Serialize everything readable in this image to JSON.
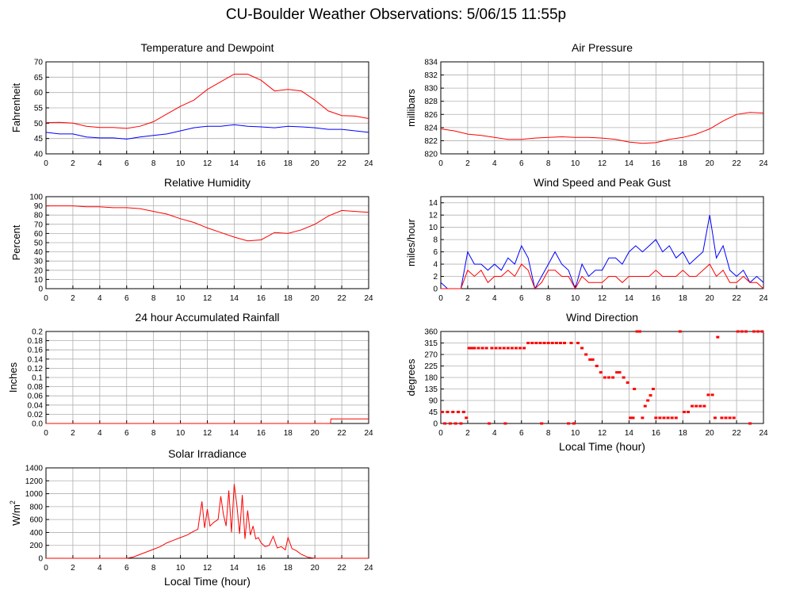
{
  "page": {
    "title": "CU-Boulder Weather Observations: 5/06/15 11:55p"
  },
  "colors": {
    "primary_series": "#ff0000",
    "secondary_series": "#0000ff",
    "grid": "#b0b0b0"
  },
  "chart_data": [
    {
      "id": "temperature",
      "type": "line",
      "title": "Temperature and Dewpoint",
      "ylabel": "Fahrenheit",
      "xlabel": "",
      "xlim": [
        0,
        24
      ],
      "ylim": [
        40,
        70
      ],
      "xticks": [
        "0",
        "2",
        "4",
        "6",
        "8",
        "10",
        "12",
        "14",
        "16",
        "18",
        "20",
        "22",
        "24"
      ],
      "yticks": [
        "40",
        "45",
        "50",
        "55",
        "60",
        "65",
        "70"
      ],
      "grid": true,
      "x": [
        0,
        1,
        2,
        3,
        4,
        5,
        6,
        7,
        8,
        9,
        10,
        11,
        12,
        13,
        14,
        15,
        16,
        17,
        18,
        19,
        20,
        21,
        22,
        23,
        24
      ],
      "series": [
        {
          "color": "#ff0000",
          "values": [
            50.2,
            50.3,
            50,
            49,
            48.6,
            48.6,
            48.3,
            49,
            50.5,
            53,
            55.5,
            57.5,
            61,
            63.5,
            66,
            66,
            64,
            60.5,
            61,
            60.5,
            57.5,
            54,
            52.5,
            52.3,
            51.5
          ]
        },
        {
          "color": "#0000ff",
          "values": [
            47,
            46.5,
            46.5,
            45.5,
            45.2,
            45.2,
            44.8,
            45.5,
            46,
            46.5,
            47.5,
            48.5,
            49,
            49,
            49.5,
            49,
            48.8,
            48.5,
            49,
            48.8,
            48.5,
            48,
            48,
            47.5,
            47
          ]
        }
      ]
    },
    {
      "id": "pressure",
      "type": "line",
      "title": "Air Pressure",
      "ylabel": "millibars",
      "xlabel": "",
      "xlim": [
        0,
        24
      ],
      "ylim": [
        820,
        834
      ],
      "xticks": [
        "0",
        "2",
        "4",
        "6",
        "8",
        "10",
        "12",
        "14",
        "16",
        "18",
        "20",
        "22",
        "24"
      ],
      "yticks": [
        "820",
        "822",
        "824",
        "826",
        "828",
        "830",
        "832",
        "834"
      ],
      "grid": true,
      "x": [
        0,
        1,
        2,
        3,
        4,
        5,
        6,
        7,
        8,
        9,
        10,
        11,
        12,
        13,
        14,
        15,
        16,
        17,
        18,
        19,
        20,
        21,
        22,
        23,
        24
      ],
      "series": [
        {
          "color": "#ff0000",
          "values": [
            823.8,
            823.5,
            823,
            822.8,
            822.5,
            822.2,
            822.2,
            822.4,
            822.5,
            822.6,
            822.5,
            822.5,
            822.4,
            822.2,
            821.8,
            821.6,
            821.7,
            822.2,
            822.5,
            823,
            823.8,
            825,
            826,
            826.3,
            826.2
          ]
        }
      ]
    },
    {
      "id": "humidity",
      "type": "line",
      "title": "Relative Humidity",
      "ylabel": "Percent",
      "xlabel": "",
      "xlim": [
        0,
        24
      ],
      "ylim": [
        0,
        100
      ],
      "xticks": [
        "0",
        "2",
        "4",
        "6",
        "8",
        "10",
        "12",
        "14",
        "16",
        "18",
        "20",
        "22",
        "24"
      ],
      "yticks": [
        "0",
        "10",
        "20",
        "30",
        "40",
        "50",
        "60",
        "70",
        "80",
        "90",
        "100"
      ],
      "grid": true,
      "x": [
        0,
        1,
        2,
        3,
        4,
        5,
        6,
        7,
        8,
        9,
        10,
        11,
        12,
        13,
        14,
        15,
        16,
        17,
        18,
        19,
        20,
        21,
        22,
        23,
        24
      ],
      "series": [
        {
          "color": "#ff0000",
          "values": [
            90,
            90,
            90,
            89,
            89,
            88,
            88,
            87,
            84,
            81,
            76,
            72,
            66,
            61,
            56,
            52,
            53,
            61,
            60,
            64,
            70,
            79,
            85,
            84,
            83
          ]
        }
      ]
    },
    {
      "id": "wind-speed",
      "type": "line",
      "title": "Wind Speed and Peak Gust",
      "ylabel": "miles/hour",
      "xlabel": "",
      "xlim": [
        0,
        24
      ],
      "ylim": [
        0,
        15
      ],
      "xticks": [
        "0",
        "2",
        "4",
        "6",
        "8",
        "10",
        "12",
        "14",
        "16",
        "18",
        "20",
        "22",
        "24"
      ],
      "yticks": [
        "0",
        "2",
        "4",
        "6",
        "8",
        "10",
        "12",
        "14"
      ],
      "grid": true,
      "x": [
        0,
        0.5,
        1,
        1.5,
        2,
        2.5,
        3,
        3.5,
        4,
        4.5,
        5,
        5.5,
        6,
        6.5,
        7,
        7.5,
        8,
        8.5,
        9,
        9.5,
        10,
        10.5,
        11,
        11.5,
        12,
        12.5,
        13,
        13.5,
        14,
        14.5,
        15,
        15.5,
        16,
        16.5,
        17,
        17.5,
        18,
        18.5,
        19,
        19.5,
        20,
        20.5,
        21,
        21.5,
        22,
        22.5,
        23,
        23.5,
        24
      ],
      "series": [
        {
          "color": "#0000ff",
          "values": [
            1,
            0,
            0,
            0,
            6,
            4,
            4,
            3,
            4,
            3,
            5,
            4,
            7,
            5,
            0,
            2,
            4,
            6,
            4,
            3,
            0,
            4,
            2,
            3,
            3,
            5,
            5,
            4,
            6,
            7,
            6,
            7,
            8,
            6,
            7,
            5,
            6,
            4,
            5,
            6,
            12,
            5,
            7,
            3,
            2,
            3,
            1,
            2,
            1
          ]
        },
        {
          "color": "#ff0000",
          "values": [
            0,
            0,
            0,
            0,
            3,
            2,
            3,
            1,
            2,
            2,
            3,
            2,
            4,
            3,
            0,
            1,
            3,
            3,
            2,
            2,
            0,
            2,
            1,
            1,
            1,
            2,
            2,
            1,
            2,
            2,
            2,
            2,
            3,
            2,
            2,
            2,
            3,
            2,
            2,
            3,
            4,
            2,
            3,
            1,
            1,
            2,
            1,
            1,
            0
          ]
        }
      ]
    },
    {
      "id": "rainfall",
      "type": "line",
      "title": "24 hour Accumulated Rainfall",
      "ylabel": "Inches",
      "xlabel": "",
      "xlim": [
        0,
        24
      ],
      "ylim": [
        0,
        0.2
      ],
      "xticks": [
        "0",
        "2",
        "4",
        "6",
        "8",
        "10",
        "12",
        "14",
        "16",
        "18",
        "20",
        "22",
        "24"
      ],
      "yticks": [
        "0.0",
        "0.02",
        "0.04",
        "0.06",
        "0.08",
        "0.1",
        "0.12",
        "0.14",
        "0.16",
        "0.18",
        "0.2"
      ],
      "grid": true,
      "x": [
        0,
        21.15,
        21.2,
        24
      ],
      "series": [
        {
          "color": "#ff0000",
          "values": [
            0,
            0,
            0.01,
            0.01
          ]
        }
      ]
    },
    {
      "id": "wind-direction",
      "type": "scatter",
      "title": "Wind Direction",
      "ylabel": "degrees",
      "xlabel": "Local Time (hour)",
      "xlim": [
        0,
        24
      ],
      "ylim": [
        0,
        360
      ],
      "xticks": [
        "0",
        "2",
        "4",
        "6",
        "8",
        "10",
        "12",
        "14",
        "16",
        "18",
        "20",
        "22",
        "24"
      ],
      "yticks": [
        "0",
        "45",
        "90",
        "135",
        "180",
        "225",
        "270",
        "315",
        "360"
      ],
      "grid": true,
      "x": [
        0.1,
        0.3,
        0.5,
        0.7,
        0.9,
        1.1,
        1.3,
        1.5,
        1.7,
        1.9,
        2.1,
        2.3,
        2.5,
        2.8,
        3.1,
        3.4,
        3.6,
        3.8,
        4.1,
        4.4,
        4.7,
        4.8,
        5.0,
        5.3,
        5.6,
        5.9,
        6.2,
        6.5,
        6.8,
        7.1,
        7.4,
        7.5,
        7.7,
        8.0,
        8.3,
        8.6,
        8.9,
        9.2,
        9.5,
        9.7,
        9.9,
        10.2,
        10.5,
        10.8,
        11.1,
        11.3,
        11.6,
        11.9,
        12.2,
        12.5,
        12.8,
        13.1,
        13.3,
        13.6,
        13.9,
        14.1,
        14.3,
        14.4,
        14.6,
        14.8,
        15.0,
        15.2,
        15.4,
        15.6,
        15.8,
        16.0,
        16.3,
        16.6,
        16.9,
        17.2,
        17.5,
        17.8,
        18.1,
        18.4,
        18.7,
        19.0,
        19.3,
        19.6,
        19.9,
        20.2,
        20.4,
        20.6,
        20.9,
        21.2,
        21.5,
        21.8,
        22.1,
        22.4,
        22.7,
        23.0,
        23.3,
        23.6,
        23.9
      ],
      "series": [
        {
          "color": "#ff0000",
          "values": [
            45,
            0,
            45,
            0,
            45,
            0,
            45,
            0,
            45,
            22,
            295,
            295,
            295,
            295,
            295,
            295,
            0,
            295,
            295,
            295,
            295,
            0,
            295,
            295,
            295,
            295,
            295,
            315,
            315,
            315,
            315,
            0,
            315,
            315,
            315,
            315,
            315,
            315,
            0,
            315,
            0,
            315,
            295,
            270,
            250,
            250,
            225,
            200,
            180,
            180,
            180,
            200,
            200,
            180,
            160,
            22,
            22,
            135,
            360,
            360,
            22,
            68,
            90,
            110,
            135,
            22,
            22,
            22,
            22,
            22,
            22,
            360,
            45,
            45,
            68,
            68,
            68,
            68,
            112,
            112,
            22,
            338,
            22,
            22,
            22,
            22,
            360,
            360,
            360,
            0,
            360,
            360,
            360
          ]
        }
      ]
    },
    {
      "id": "solar",
      "type": "line",
      "title": "Solar Irradiance",
      "ylabel": "W/m",
      "ylabel_superscript": "2",
      "xlabel": "Local Time (hour)",
      "xlim": [
        0,
        24
      ],
      "ylim": [
        0,
        1400
      ],
      "xticks": [
        "0",
        "2",
        "4",
        "6",
        "8",
        "10",
        "12",
        "14",
        "16",
        "18",
        "20",
        "22",
        "24"
      ],
      "yticks": [
        "0",
        "200",
        "400",
        "600",
        "800",
        "1000",
        "1200",
        "1400"
      ],
      "grid": true,
      "x": [
        0,
        6,
        6.5,
        7,
        7.5,
        8,
        8.5,
        9,
        9.5,
        10,
        10.5,
        11,
        11.3,
        11.6,
        11.8,
        12,
        12.2,
        12.5,
        12.8,
        13,
        13.2,
        13.4,
        13.6,
        13.8,
        14,
        14.2,
        14.4,
        14.6,
        14.8,
        15,
        15.2,
        15.4,
        15.6,
        15.8,
        16,
        16.3,
        16.6,
        16.9,
        17.2,
        17.5,
        17.8,
        18,
        18.3,
        18.6,
        19,
        19.5,
        20,
        20.5,
        21,
        24
      ],
      "series": [
        {
          "color": "#ff0000",
          "values": [
            0,
            0,
            20,
            60,
            100,
            140,
            180,
            240,
            280,
            320,
            360,
            420,
            450,
            880,
            470,
            760,
            500,
            560,
            600,
            960,
            680,
            500,
            1050,
            400,
            1150,
            820,
            380,
            980,
            300,
            740,
            360,
            500,
            300,
            320,
            240,
            180,
            200,
            340,
            160,
            180,
            130,
            320,
            150,
            120,
            60,
            15,
            0,
            0,
            0,
            0
          ]
        }
      ]
    }
  ]
}
